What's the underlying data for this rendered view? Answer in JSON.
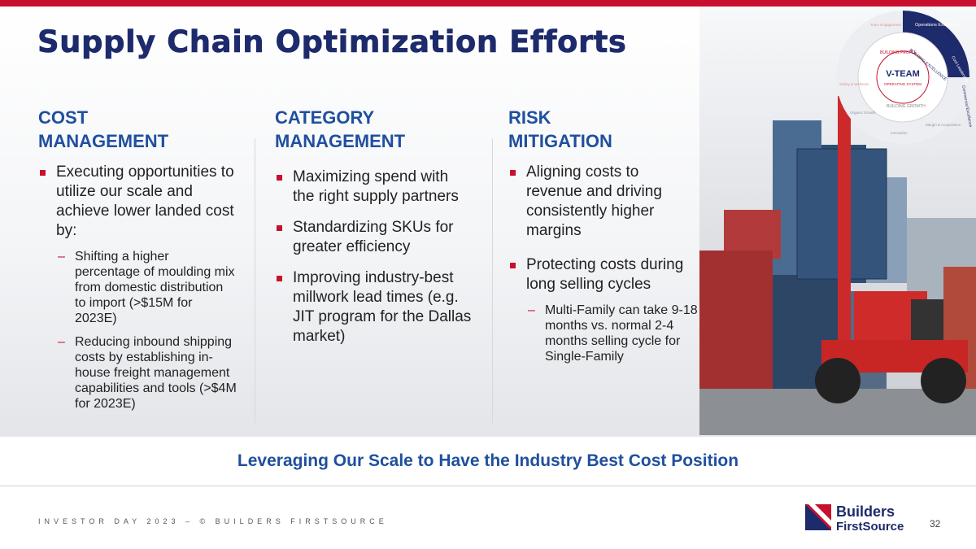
{
  "header": {
    "title": "Supply Chain Optimization Efforts"
  },
  "wheel": {
    "center": "V-TEAM",
    "center_sub": "OPERATING SYSTEM",
    "rings": [
      "BUILDING PEOPLE",
      "BUILDING EXCELLENCE",
      "BUILDING GROWTH"
    ],
    "segments": [
      "Operations Excellence",
      "Cost Leadership",
      "Commercial Excellence",
      "Margin & Acquisitions",
      "Innovation",
      "Organic Growth",
      "Safety & Wellness",
      "Team Engagement"
    ]
  },
  "columns": [
    {
      "heading": [
        "COST",
        "MANAGEMENT"
      ],
      "items": [
        {
          "text": "Executing opportunities to utilize our scale and achieve lower landed cost by:",
          "subitems": [
            "Shifting a higher percentage of moulding mix from domestic distribution to import (>$15M for 2023E)",
            "Reducing inbound shipping costs by establishing in-house freight management capabilities and tools (>$4M for 2023E)"
          ]
        }
      ]
    },
    {
      "heading": [
        "CATEGORY",
        "MANAGEMENT"
      ],
      "items": [
        {
          "text": "Maximizing spend with the right supply partners",
          "subitems": []
        },
        {
          "text": "Standardizing SKUs for greater efficiency",
          "subitems": []
        },
        {
          "text": "Improving industry-best millwork lead times (e.g. JIT program for the Dallas market)",
          "subitems": []
        }
      ]
    },
    {
      "heading": [
        "RISK",
        "MITIGATION"
      ],
      "items": [
        {
          "text": "Aligning costs to revenue and driving consistently higher margins",
          "subitems": []
        },
        {
          "text": "Protecting costs during long selling cycles",
          "subitems": [
            "Multi-Family can take 9-18 months vs. normal 2-4 months selling cycle for Single-Family"
          ]
        }
      ]
    }
  ],
  "tagline": "Leveraging Our Scale to Have the Industry Best Cost Position",
  "footer": {
    "text": "INVESTOR DAY 2023 – © BUILDERS FIRSTSOURCE",
    "page": "32"
  },
  "logo": {
    "line1": "Builders",
    "line2": "FirstSource"
  }
}
